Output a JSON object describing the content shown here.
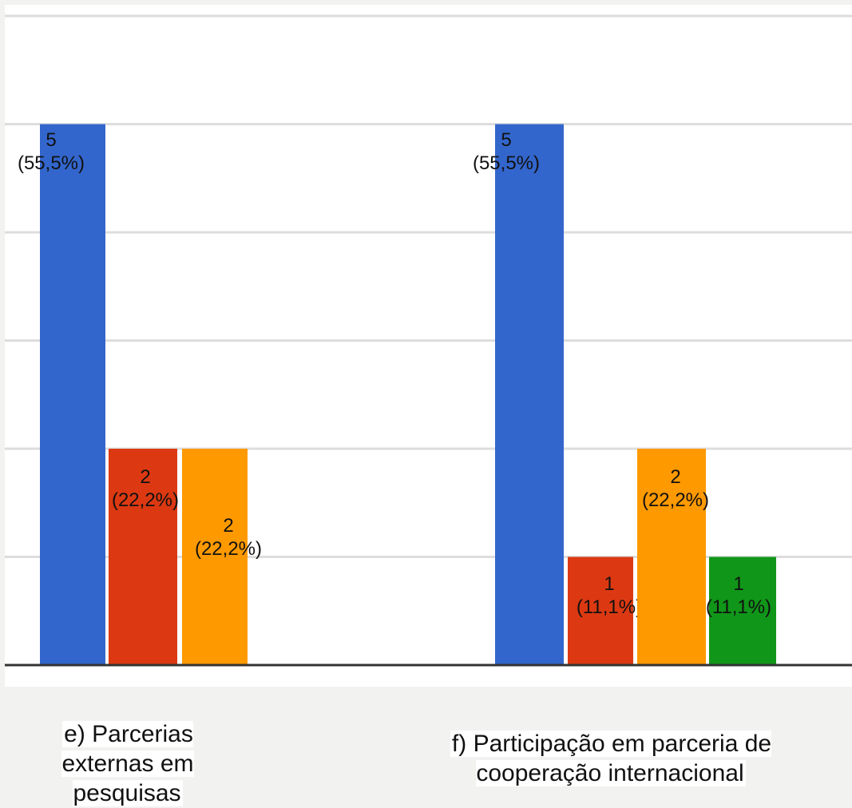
{
  "chart_data": {
    "type": "bar",
    "categories": [
      "e) Parcerias externas em pesquisas",
      "f) Participação em parceria de cooperação internacional"
    ],
    "category_label_lines": [
      [
        "e) Parcerias",
        "externas em",
        "pesquisas"
      ],
      [
        "f) Participação em parceria de",
        "cooperação internacional"
      ]
    ],
    "ylim": [
      0,
      6
    ],
    "grid": true,
    "bars": [
      [
        {
          "value": 5,
          "label": "(55,5%)",
          "color": "#3366cc"
        },
        {
          "value": 2,
          "label": "(22,2%)",
          "color": "#dc3912"
        },
        {
          "value": 2,
          "label": "(22,2%)",
          "color": "#ff9900"
        }
      ],
      [
        {
          "value": 5,
          "label": "(55,5%)",
          "color": "#3366cc"
        },
        {
          "value": 1,
          "label": "(11,1%)",
          "color": "#dc3912"
        },
        {
          "value": 2,
          "label": "(22,2%)",
          "color": "#ff9900"
        },
        {
          "value": 1,
          "label": "(11,1%)",
          "color": "#109618"
        }
      ]
    ]
  }
}
